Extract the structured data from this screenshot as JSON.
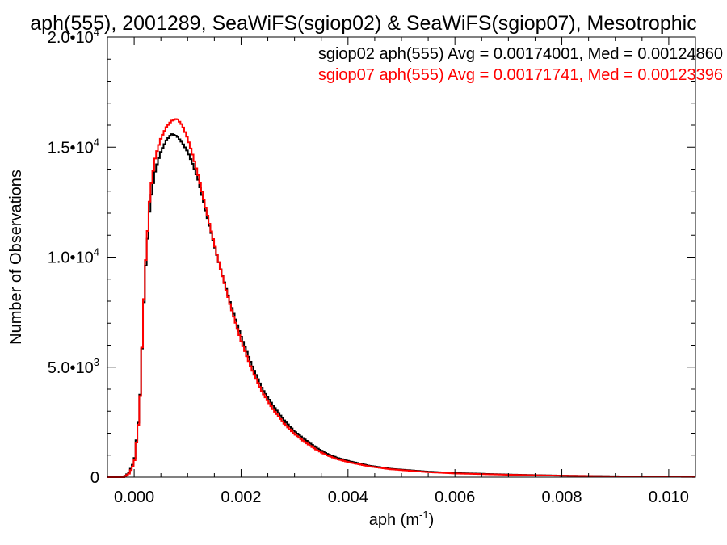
{
  "chart_data": {
    "type": "histogram-line",
    "title": "aph(555), 2001289, SeaWiFS(sgiop02) & SeaWiFS(sgiop07), Mesotrophic",
    "xlabel_base": "aph (m",
    "xlabel_exp": "-1",
    "xlabel_close": ")",
    "ylabel": "Number of Observations",
    "xlim": [
      -0.0005,
      0.0105
    ],
    "ylim": [
      0,
      20000
    ],
    "grid": false,
    "legend_position": "top-right",
    "x_ticks": [
      {
        "value": 0.0,
        "label": "0.000"
      },
      {
        "value": 0.002,
        "label": "0.002"
      },
      {
        "value": 0.004,
        "label": "0.004"
      },
      {
        "value": 0.006,
        "label": "0.006"
      },
      {
        "value": 0.008,
        "label": "0.008"
      },
      {
        "value": 0.01,
        "label": "0.010"
      }
    ],
    "y_ticks": [
      {
        "value": 0,
        "base": "0",
        "exp": ""
      },
      {
        "value": 5000,
        "base": "5.0•10",
        "exp": "3"
      },
      {
        "value": 10000,
        "base": "1.0•10",
        "exp": "4"
      },
      {
        "value": 15000,
        "base": "1.5•10",
        "exp": "4"
      },
      {
        "value": 20000,
        "base": "2.0•10",
        "exp": "4"
      }
    ],
    "series": [
      {
        "name": "sgiop02",
        "legend": "sgiop02 aph(555) Avg = 0.00174001, Med = 0.00124860",
        "color": "#000000",
        "x": [
          -0.0005,
          -0.0002,
          -0.0001,
          0.0,
          0.0001,
          0.0002,
          0.0003,
          0.0004,
          0.0005,
          0.0006,
          0.0007,
          0.0008,
          0.0009,
          0.001,
          0.0011,
          0.0012,
          0.0014,
          0.0016,
          0.0018,
          0.002,
          0.0022,
          0.0024,
          0.0026,
          0.0028,
          0.003,
          0.0032,
          0.0034,
          0.0036,
          0.0038,
          0.004,
          0.0044,
          0.0048,
          0.0055,
          0.006,
          0.007,
          0.008,
          0.009,
          0.0105
        ],
        "y": [
          0,
          0,
          200,
          700,
          3000,
          9000,
          12500,
          14000,
          14800,
          15300,
          15600,
          15500,
          15200,
          14800,
          14200,
          13500,
          11500,
          9600,
          7900,
          6400,
          5100,
          4000,
          3250,
          2600,
          2080,
          1700,
          1350,
          1070,
          880,
          740,
          520,
          380,
          250,
          190,
          120,
          70,
          40,
          15
        ]
      },
      {
        "name": "sgiop07",
        "legend": "sgiop07 aph(555) Avg = 0.00171741, Med = 0.00123396",
        "color": "#ff0000",
        "x": [
          -0.0005,
          -0.0002,
          -0.0001,
          0.0,
          0.0001,
          0.0002,
          0.0003,
          0.0004,
          0.0005,
          0.0006,
          0.0007,
          0.0008,
          0.0009,
          0.001,
          0.0011,
          0.0012,
          0.0014,
          0.0016,
          0.0018,
          0.002,
          0.0022,
          0.0024,
          0.0026,
          0.0028,
          0.003,
          0.0032,
          0.0034,
          0.0036,
          0.0038,
          0.004,
          0.0044,
          0.0048,
          0.0055,
          0.006,
          0.007,
          0.008,
          0.009,
          0.0105
        ],
        "y": [
          0,
          0,
          150,
          600,
          2900,
          9200,
          13000,
          14600,
          15400,
          15900,
          16200,
          16300,
          16000,
          15400,
          14600,
          13700,
          11600,
          9600,
          7800,
          6200,
          4900,
          3850,
          3080,
          2450,
          1960,
          1580,
          1260,
          1000,
          820,
          690,
          490,
          360,
          230,
          170,
          110,
          65,
          35,
          12
        ]
      }
    ]
  }
}
